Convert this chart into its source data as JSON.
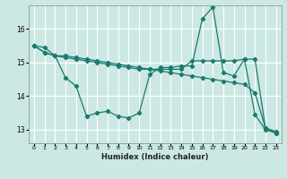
{
  "xlabel": "Humidex (Indice chaleur)",
  "background_color": "#cce8e4",
  "grid_color": "#ffffff",
  "line_color": "#1a7a6e",
  "x": [
    0,
    1,
    2,
    3,
    4,
    5,
    6,
    7,
    8,
    9,
    10,
    11,
    12,
    13,
    14,
    15,
    16,
    17,
    18,
    19,
    20,
    21,
    22,
    23
  ],
  "line1": [
    15.5,
    15.45,
    15.2,
    15.2,
    15.15,
    15.1,
    15.05,
    15.0,
    14.95,
    14.9,
    14.85,
    14.8,
    14.75,
    14.7,
    14.65,
    14.6,
    14.55,
    14.5,
    14.45,
    14.4,
    14.35,
    14.1,
    13.05,
    12.95
  ],
  "line2": [
    15.5,
    15.3,
    15.2,
    14.55,
    14.3,
    13.4,
    13.5,
    13.55,
    13.4,
    13.35,
    13.5,
    14.65,
    14.85,
    14.85,
    14.9,
    14.9,
    16.3,
    16.65,
    14.7,
    14.6,
    15.1,
    13.45,
    13.0,
    12.9
  ],
  "line3": [
    15.5,
    15.3,
    15.2,
    15.15,
    15.1,
    15.05,
    15.0,
    14.95,
    14.9,
    14.85,
    14.8,
    14.8,
    14.8,
    14.8,
    14.8,
    15.05,
    15.05,
    15.05,
    15.05,
    15.05,
    15.1,
    15.1,
    13.05,
    12.9
  ],
  "ylim": [
    12.6,
    16.7
  ],
  "xlim": [
    -0.5,
    23.5
  ],
  "yticks": [
    13,
    14,
    15,
    16
  ],
  "xticks": [
    0,
    1,
    2,
    3,
    4,
    5,
    6,
    7,
    8,
    9,
    10,
    11,
    12,
    13,
    14,
    15,
    16,
    17,
    18,
    19,
    20,
    21,
    22,
    23
  ]
}
